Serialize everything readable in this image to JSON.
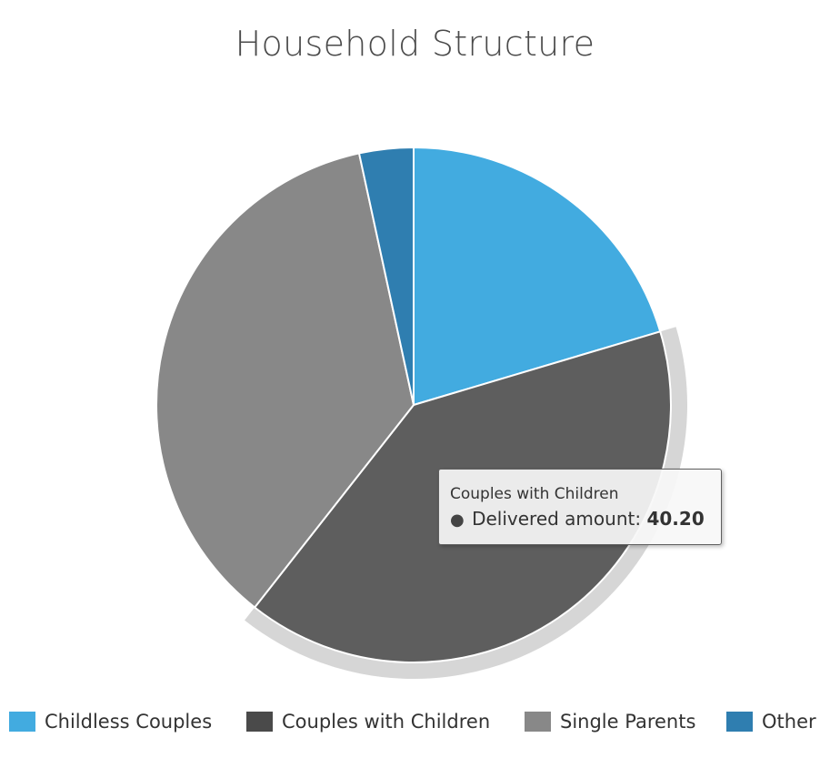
{
  "chart_data": {
    "type": "pie",
    "title": "Household Structure",
    "categories": [
      "Childless Couples",
      "Couples with Children",
      "Single Parents",
      "Other"
    ],
    "values": [
      20.4,
      40.2,
      36.0,
      3.4
    ],
    "colors": [
      "#42abe0",
      "#5e5e5e",
      "#888888",
      "#2f7eb0"
    ],
    "legend_colors": [
      "#42abe0",
      "#4a4a4a",
      "#888888",
      "#2f7eb0"
    ],
    "highlighted": "Couples with Children",
    "legend_placement": "bottom",
    "tooltip": {
      "title": "Couples with Children",
      "series_name": "Delivered amount",
      "value": "40.20"
    }
  }
}
